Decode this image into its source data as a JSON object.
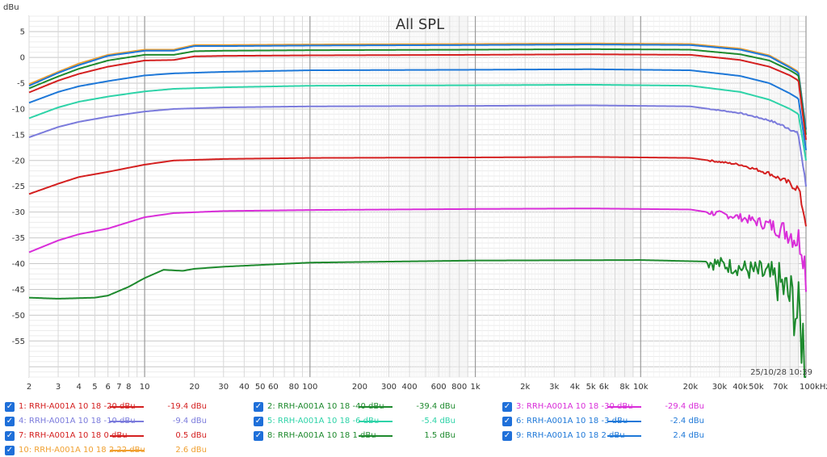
{
  "chart_data": {
    "type": "line",
    "title": "All SPL",
    "ylabel": "dBu",
    "xlabel": "",
    "x_scale": "log",
    "xlim": [
      2,
      100000
    ],
    "ylim": [
      -62,
      8
    ],
    "grid": true,
    "timestamp": "25/10/28 10:39",
    "y_ticks": [
      "5",
      "0",
      "-5",
      "-10",
      "-15",
      "-20",
      "-25",
      "-30",
      "-35",
      "-40",
      "-45",
      "-50",
      "-55"
    ],
    "x_ticks": [
      {
        "v": 2,
        "label": "2"
      },
      {
        "v": 3,
        "label": "3"
      },
      {
        "v": 4,
        "label": "4"
      },
      {
        "v": 5,
        "label": "5"
      },
      {
        "v": 6,
        "label": "6"
      },
      {
        "v": 7,
        "label": "7"
      },
      {
        "v": 8,
        "label": "8"
      },
      {
        "v": 10,
        "label": "10"
      },
      {
        "v": 20,
        "label": "20"
      },
      {
        "v": 30,
        "label": "30"
      },
      {
        "v": 40,
        "label": "40"
      },
      {
        "v": 50,
        "label": "50"
      },
      {
        "v": 60,
        "label": "60"
      },
      {
        "v": 80,
        "label": "80"
      },
      {
        "v": 100,
        "label": "100"
      },
      {
        "v": 200,
        "label": "200"
      },
      {
        "v": 300,
        "label": "300"
      },
      {
        "v": 400,
        "label": "400"
      },
      {
        "v": 600,
        "label": "600"
      },
      {
        "v": 800,
        "label": "800"
      },
      {
        "v": 1000,
        "label": "1k"
      },
      {
        "v": 2000,
        "label": "2k"
      },
      {
        "v": 3000,
        "label": "3k"
      },
      {
        "v": 4000,
        "label": "4k"
      },
      {
        "v": 5000,
        "label": "5k"
      },
      {
        "v": 6000,
        "label": "6k"
      },
      {
        "v": 8000,
        "label": "8k"
      },
      {
        "v": 10000,
        "label": "10k"
      },
      {
        "v": 20000,
        "label": "20k"
      },
      {
        "v": 30000,
        "label": "30k"
      },
      {
        "v": 40000,
        "label": "40k"
      },
      {
        "v": 50000,
        "label": "50k"
      },
      {
        "v": 70000,
        "label": "70k"
      },
      {
        "v": 100000,
        "label": "100kHz"
      }
    ],
    "series": [
      {
        "name": "1: RRH-A001A 10 18 -20 dBu",
        "value": "-19.4 dBu",
        "color": "#d42020",
        "noise": 0.4,
        "points": [
          [
            2,
            -26.5
          ],
          [
            3,
            -24.5
          ],
          [
            4,
            -23.2
          ],
          [
            6,
            -22.2
          ],
          [
            10,
            -20.8
          ],
          [
            15,
            -20.0
          ],
          [
            30,
            -19.7
          ],
          [
            100,
            -19.5
          ],
          [
            1000,
            -19.4
          ],
          [
            5000,
            -19.3
          ],
          [
            20000,
            -19.5
          ],
          [
            40000,
            -20.8
          ],
          [
            60000,
            -22.5
          ],
          [
            80000,
            -24.5
          ],
          [
            90000,
            -25.5
          ],
          [
            100000,
            -32
          ]
        ]
      },
      {
        "name": "2: RRH-A001A 10 18 -40 dBu",
        "value": "-39.4 dBu",
        "color": "#1e8a2e",
        "noise": 3.5,
        "points": [
          [
            2,
            -46.6
          ],
          [
            3,
            -46.8
          ],
          [
            5,
            -46.6
          ],
          [
            6,
            -46.2
          ],
          [
            8,
            -44.5
          ],
          [
            10,
            -42.8
          ],
          [
            13,
            -41.2
          ],
          [
            17,
            -41.4
          ],
          [
            20,
            -41.0
          ],
          [
            30,
            -40.6
          ],
          [
            100,
            -39.8
          ],
          [
            1000,
            -39.4
          ],
          [
            10000,
            -39.3
          ],
          [
            25000,
            -39.6
          ],
          [
            40000,
            -40.8
          ],
          [
            55000,
            -42
          ],
          [
            70000,
            -44
          ],
          [
            85000,
            -48
          ],
          [
            95000,
            -54
          ],
          [
            100000,
            -58
          ]
        ]
      },
      {
        "name": "3: RRH-A001A 10 18 -30 dBu",
        "value": "-29.4 dBu",
        "color": "#d92ed9",
        "noise": 1.5,
        "points": [
          [
            2,
            -37.8
          ],
          [
            3,
            -35.5
          ],
          [
            4,
            -34.3
          ],
          [
            6,
            -33.2
          ],
          [
            10,
            -31.0
          ],
          [
            15,
            -30.2
          ],
          [
            30,
            -29.8
          ],
          [
            100,
            -29.6
          ],
          [
            1000,
            -29.4
          ],
          [
            5000,
            -29.3
          ],
          [
            20000,
            -29.5
          ],
          [
            40000,
            -31
          ],
          [
            60000,
            -32.5
          ],
          [
            80000,
            -34
          ],
          [
            95000,
            -36
          ],
          [
            100000,
            -42
          ]
        ]
      },
      {
        "name": "4: RRH-A001A 10 18 -10 dBu",
        "value": "-9.4 dBu",
        "color": "#7b7bdc",
        "noise": 0.2,
        "points": [
          [
            2,
            -15.5
          ],
          [
            3,
            -13.5
          ],
          [
            4,
            -12.5
          ],
          [
            6,
            -11.5
          ],
          [
            10,
            -10.5
          ],
          [
            15,
            -10.0
          ],
          [
            30,
            -9.7
          ],
          [
            100,
            -9.5
          ],
          [
            1000,
            -9.4
          ],
          [
            5000,
            -9.3
          ],
          [
            20000,
            -9.5
          ],
          [
            40000,
            -10.8
          ],
          [
            60000,
            -12.2
          ],
          [
            80000,
            -13.8
          ],
          [
            90000,
            -15
          ],
          [
            100000,
            -25
          ]
        ]
      },
      {
        "name": "5: RRH-A001A 10 18 -6 dBu",
        "value": "-5.4 dBu",
        "color": "#2ed3a8",
        "noise": 0,
        "points": [
          [
            2,
            -11.8
          ],
          [
            3,
            -9.7
          ],
          [
            4,
            -8.6
          ],
          [
            6,
            -7.6
          ],
          [
            10,
            -6.6
          ],
          [
            15,
            -6.1
          ],
          [
            30,
            -5.8
          ],
          [
            100,
            -5.5
          ],
          [
            1000,
            -5.4
          ],
          [
            5000,
            -5.3
          ],
          [
            20000,
            -5.5
          ],
          [
            40000,
            -6.7
          ],
          [
            60000,
            -8.2
          ],
          [
            80000,
            -10
          ],
          [
            90000,
            -11
          ],
          [
            100000,
            -20
          ]
        ]
      },
      {
        "name": "6: RRH-A001A 10 18 -3 dBu",
        "value": "-2.4 dBu",
        "color": "#1e78d8",
        "noise": 0,
        "points": [
          [
            2,
            -8.8
          ],
          [
            3,
            -6.7
          ],
          [
            4,
            -5.6
          ],
          [
            6,
            -4.6
          ],
          [
            10,
            -3.5
          ],
          [
            15,
            -3.1
          ],
          [
            30,
            -2.8
          ],
          [
            100,
            -2.5
          ],
          [
            1000,
            -2.4
          ],
          [
            5000,
            -2.3
          ],
          [
            20000,
            -2.5
          ],
          [
            40000,
            -3.6
          ],
          [
            60000,
            -5
          ],
          [
            80000,
            -7
          ],
          [
            90000,
            -8
          ],
          [
            100000,
            -18
          ]
        ]
      },
      {
        "name": "7: RRH-A001A 10 18 0 dBu",
        "value": "0.5 dBu",
        "color": "#d42020",
        "noise": 0,
        "points": [
          [
            2,
            -6.8
          ],
          [
            3,
            -4.5
          ],
          [
            4,
            -3.2
          ],
          [
            6,
            -1.8
          ],
          [
            10,
            -0.6
          ],
          [
            15,
            -0.5
          ],
          [
            20,
            0.2
          ],
          [
            30,
            0.3
          ],
          [
            100,
            0.4
          ],
          [
            1000,
            0.5
          ],
          [
            5000,
            0.6
          ],
          [
            20000,
            0.5
          ],
          [
            40000,
            -0.5
          ],
          [
            60000,
            -1.8
          ],
          [
            80000,
            -3.5
          ],
          [
            90000,
            -4.5
          ],
          [
            100000,
            -16
          ]
        ]
      },
      {
        "name": "8: RRH-A001A 10 18 1 dBu",
        "value": "1.5 dBu",
        "color": "#1e8a2e",
        "noise": 0,
        "points": [
          [
            2,
            -6.0
          ],
          [
            3,
            -3.7
          ],
          [
            4,
            -2.2
          ],
          [
            6,
            -0.6
          ],
          [
            10,
            0.5
          ],
          [
            15,
            0.5
          ],
          [
            20,
            1.2
          ],
          [
            30,
            1.3
          ],
          [
            100,
            1.4
          ],
          [
            1000,
            1.5
          ],
          [
            5000,
            1.6
          ],
          [
            20000,
            1.5
          ],
          [
            40000,
            0.6
          ],
          [
            60000,
            -0.6
          ],
          [
            80000,
            -2.5
          ],
          [
            90000,
            -3.5
          ],
          [
            100000,
            -15
          ]
        ]
      },
      {
        "name": "9: RRH-A001A 10 18 2 dBu",
        "value": "2.4 dBu",
        "color": "#1e78d8",
        "noise": 0,
        "points": [
          [
            2,
            -5.5
          ],
          [
            3,
            -3.0
          ],
          [
            4,
            -1.5
          ],
          [
            6,
            0.3
          ],
          [
            10,
            1.3
          ],
          [
            15,
            1.3
          ],
          [
            20,
            2.2
          ],
          [
            30,
            2.2
          ],
          [
            100,
            2.3
          ],
          [
            1000,
            2.4
          ],
          [
            5000,
            2.5
          ],
          [
            20000,
            2.4
          ],
          [
            40000,
            1.5
          ],
          [
            60000,
            0.2
          ],
          [
            80000,
            -2
          ],
          [
            90000,
            -3
          ],
          [
            100000,
            -14
          ]
        ]
      },
      {
        "name": "10: RRH-A001A 10 18 2.22 dBu",
        "value": "2.6 dBu",
        "color": "#f0a030",
        "noise": 0,
        "points": [
          [
            2,
            -5.2
          ],
          [
            3,
            -2.8
          ],
          [
            4,
            -1.2
          ],
          [
            6,
            0.5
          ],
          [
            10,
            1.5
          ],
          [
            15,
            1.5
          ],
          [
            20,
            2.4
          ],
          [
            30,
            2.4
          ],
          [
            100,
            2.5
          ],
          [
            1000,
            2.6
          ],
          [
            5000,
            2.7
          ],
          [
            20000,
            2.6
          ],
          [
            40000,
            1.7
          ],
          [
            60000,
            0.4
          ],
          [
            80000,
            -1.8
          ],
          [
            90000,
            -2.8
          ],
          [
            100000,
            -14
          ]
        ]
      }
    ]
  }
}
